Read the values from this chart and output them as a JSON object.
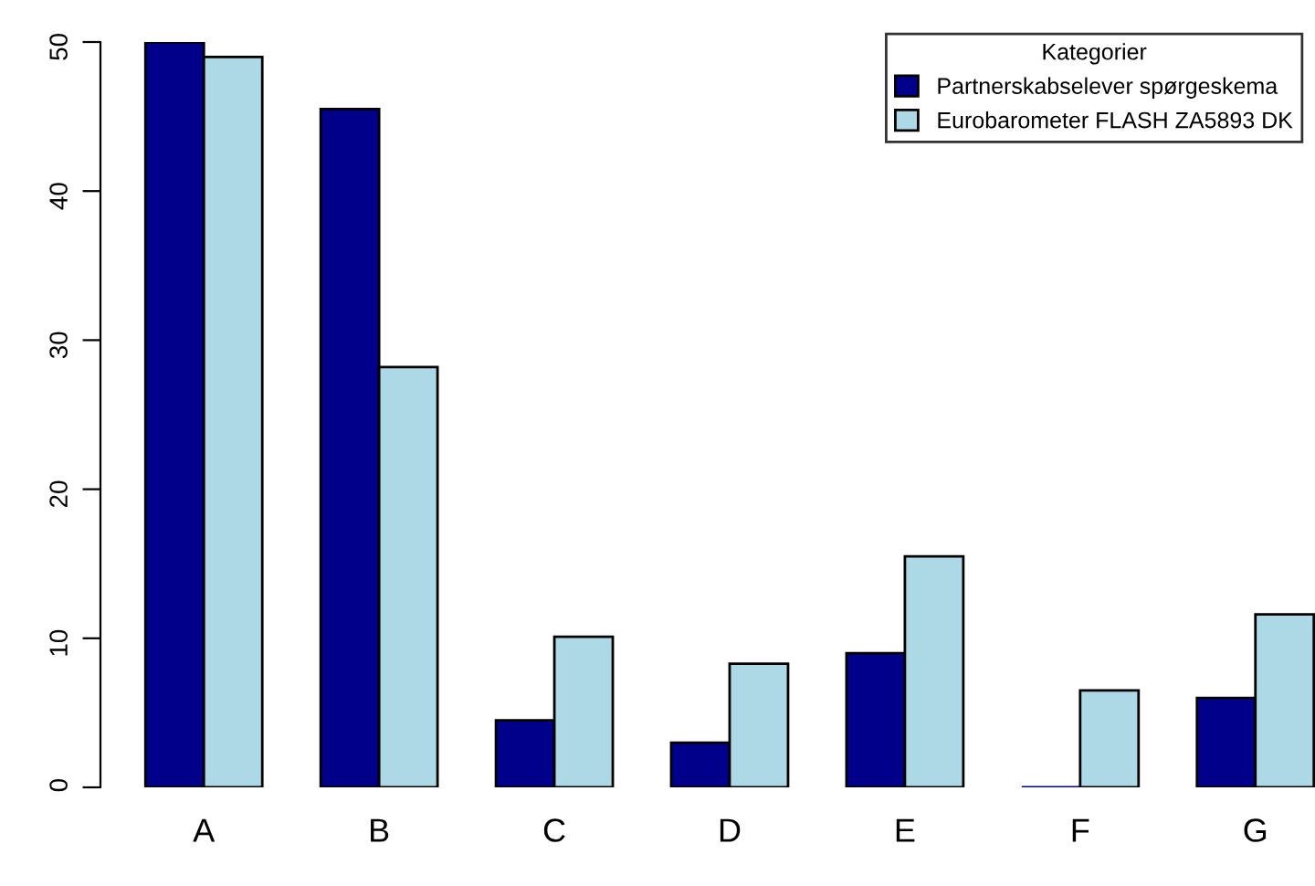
{
  "chart_data": {
    "type": "bar",
    "legend_title": "Kategorier",
    "categories": [
      "A",
      "B",
      "C",
      "D",
      "E",
      "F",
      "G"
    ],
    "series": [
      {
        "name": "Partnerskabselever spørgeskema",
        "color": "#00008b",
        "values": [
          50,
          45.5,
          4.5,
          3.0,
          9.0,
          0,
          6.0
        ]
      },
      {
        "name": "Eurobarometer FLASH ZA5893 DK",
        "color": "#add8e6",
        "values": [
          49.0,
          28.2,
          10.1,
          8.3,
          15.5,
          6.5,
          11.6
        ]
      }
    ],
    "ylim": [
      0,
      50
    ],
    "yticks": [
      0,
      10,
      20,
      30,
      40,
      50
    ],
    "grid": false,
    "legend": "top right"
  }
}
